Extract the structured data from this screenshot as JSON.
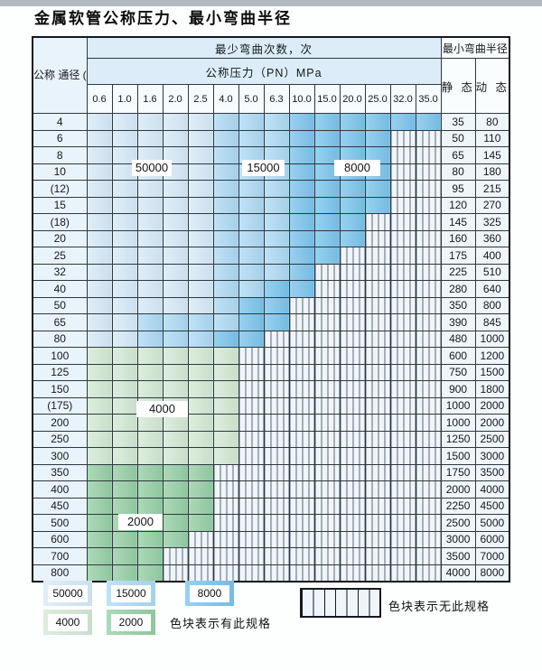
{
  "title": "金属软管公称压力、最小弯曲半径",
  "colors": {
    "L": "#d7eaf8",
    "M": "#aedaf4",
    "D": "#7cc4ec",
    "G4": "#d4e9d4",
    "G2": "#96cfa5",
    "H": "#eff5fb",
    "hatch_line": "#5a6670",
    "grid": "#2e3840",
    "header_bg": "#dcedf9",
    "label_col_bg": "#e9f3fb"
  },
  "table": {
    "corner_header": "公称\n通径\n(DN)\nmm",
    "bend_cycles_header": "最少弯曲次数，次",
    "pressure_header": "公称压力（PN）MPa",
    "radius_header": "最小弯曲半径",
    "static_header": "静 态",
    "dynamic_header": "动 态",
    "pressure_columns": [
      "0.6",
      "1.0",
      "1.6",
      "2.0",
      "2.5",
      "4.0",
      "5.0",
      "6.3",
      "10.0",
      "15.0",
      "20.0",
      "25.0",
      "32.0",
      "35.0"
    ],
    "region_legend_note": "cells: L=50000, M=15000, D=8000, g=4000, G=2000, H=no-spec-hatch",
    "rows": [
      {
        "dn": "4",
        "cells": "LLLLLMMMDDDDDD",
        "static": "35",
        "dynamic": "80"
      },
      {
        "dn": "6",
        "cells": "LLLLLMMMDDDDHH",
        "static": "50",
        "dynamic": "110"
      },
      {
        "dn": "8",
        "cells": "LLLLLMMMDDDDHH",
        "static": "65",
        "dynamic": "145"
      },
      {
        "dn": "10",
        "cells": "LLLLLMMMDDDDHH",
        "static": "80",
        "dynamic": "180"
      },
      {
        "dn": "(12)",
        "cells": "LLLLLMMMDDDDHH",
        "static": "95",
        "dynamic": "215"
      },
      {
        "dn": "15",
        "cells": "LLLLLMMMDDDDHH",
        "static": "120",
        "dynamic": "270"
      },
      {
        "dn": "(18)",
        "cells": "LLLLLMMMDDDHHH",
        "static": "145",
        "dynamic": "325"
      },
      {
        "dn": "20",
        "cells": "LLLLLMMMDDDHHH",
        "static": "160",
        "dynamic": "360"
      },
      {
        "dn": "25",
        "cells": "LLLLLMMMDDHHHH",
        "static": "175",
        "dynamic": "400"
      },
      {
        "dn": "32",
        "cells": "LLLLLMMMDHHHHH",
        "static": "225",
        "dynamic": "510"
      },
      {
        "dn": "40",
        "cells": "LLLLLMMDDHHHHH",
        "static": "280",
        "dynamic": "640"
      },
      {
        "dn": "50",
        "cells": "LLLLLMDDHHHHHH",
        "static": "350",
        "dynamic": "800"
      },
      {
        "dn": "65",
        "cells": "LLMMMMDDHHHHHH",
        "static": "390",
        "dynamic": "845"
      },
      {
        "dn": "80",
        "cells": "LLMMMDDHHHHHHH",
        "static": "480",
        "dynamic": "1000"
      },
      {
        "dn": "100",
        "cells": "ggggggHHHHHHHH",
        "static": "600",
        "dynamic": "1200"
      },
      {
        "dn": "125",
        "cells": "ggggggHHHHHHHH",
        "static": "750",
        "dynamic": "1500"
      },
      {
        "dn": "150",
        "cells": "ggggggHHHHHHHH",
        "static": "900",
        "dynamic": "1800"
      },
      {
        "dn": "(175)",
        "cells": "ggggggHHHHHHHH",
        "static": "1000",
        "dynamic": "2000"
      },
      {
        "dn": "200",
        "cells": "ggggggHHHHHHHH",
        "static": "1000",
        "dynamic": "2000"
      },
      {
        "dn": "250",
        "cells": "ggggggHHHHHHHH",
        "static": "1250",
        "dynamic": "2500"
      },
      {
        "dn": "300",
        "cells": "ggggggHHHHHHHH",
        "static": "1500",
        "dynamic": "3000"
      },
      {
        "dn": "350",
        "cells": "GGGGGHHHHHHHHH",
        "static": "1750",
        "dynamic": "3500"
      },
      {
        "dn": "400",
        "cells": "GGGGGHHHHHHHHH",
        "static": "2000",
        "dynamic": "4000"
      },
      {
        "dn": "450",
        "cells": "GGGGGHHHHHHHHH",
        "static": "2250",
        "dynamic": "4500"
      },
      {
        "dn": "500",
        "cells": "GGGGGHHHHHHHHH",
        "static": "2500",
        "dynamic": "5000"
      },
      {
        "dn": "600",
        "cells": "GGGGHHHHHHHHHH",
        "static": "3000",
        "dynamic": "6000"
      },
      {
        "dn": "700",
        "cells": "GGGHHHHHHHHHHH",
        "static": "3500",
        "dynamic": "7000"
      },
      {
        "dn": "800",
        "cells": "GGGHHHHHHHHHHH",
        "static": "4000",
        "dynamic": "8000"
      }
    ]
  },
  "region_labels": {
    "l50000": "50000",
    "l15000": "15000",
    "l8000": "8000",
    "l4000": "4000",
    "l2000": "2000"
  },
  "legend": {
    "items": [
      {
        "label": "50000",
        "region": "L"
      },
      {
        "label": "15000",
        "region": "M"
      },
      {
        "label": "8000",
        "region": "D"
      },
      {
        "label": "4000",
        "region": "G4"
      },
      {
        "label": "2000",
        "region": "G2"
      }
    ],
    "has_spec_text": "色块表示有此规格",
    "no_spec_text": "色块表示无此规格"
  }
}
